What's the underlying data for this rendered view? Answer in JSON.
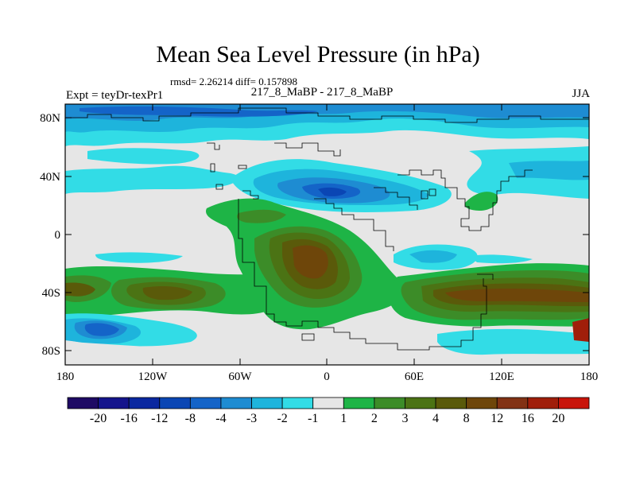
{
  "title": "Mean Sea Level Pressure (in hPa)",
  "stats": "rmsd= 2.26214 diff= 0.157898",
  "left_label": "Expt = teyDr-texPr1",
  "center_label": "217_8_MaBP - 217_8_MaBP",
  "right_label": "JJA",
  "lat_ticks": [
    "80N",
    "40N",
    "0",
    "40S",
    "80S"
  ],
  "lon_ticks": [
    "180",
    "120W",
    "60W",
    "0",
    "60E",
    "120E",
    "180"
  ],
  "colorbar": {
    "colors": [
      "#1e0a64",
      "#14148c",
      "#0a28a0",
      "#0a46b4",
      "#1464c8",
      "#1e8cd2",
      "#1eb4dc",
      "#32dce6",
      "#e6e6e6",
      "#1eb446",
      "#3c8c28",
      "#4b7314",
      "#5a5a0a",
      "#6e460a",
      "#823214",
      "#a01e0a",
      "#c8140a"
    ],
    "labels": [
      "-20",
      "-16",
      "-12",
      "-8",
      "-4",
      "-3",
      "-2",
      "-1",
      "1",
      "2",
      "3",
      "4",
      "8",
      "12",
      "16",
      "20"
    ]
  }
}
